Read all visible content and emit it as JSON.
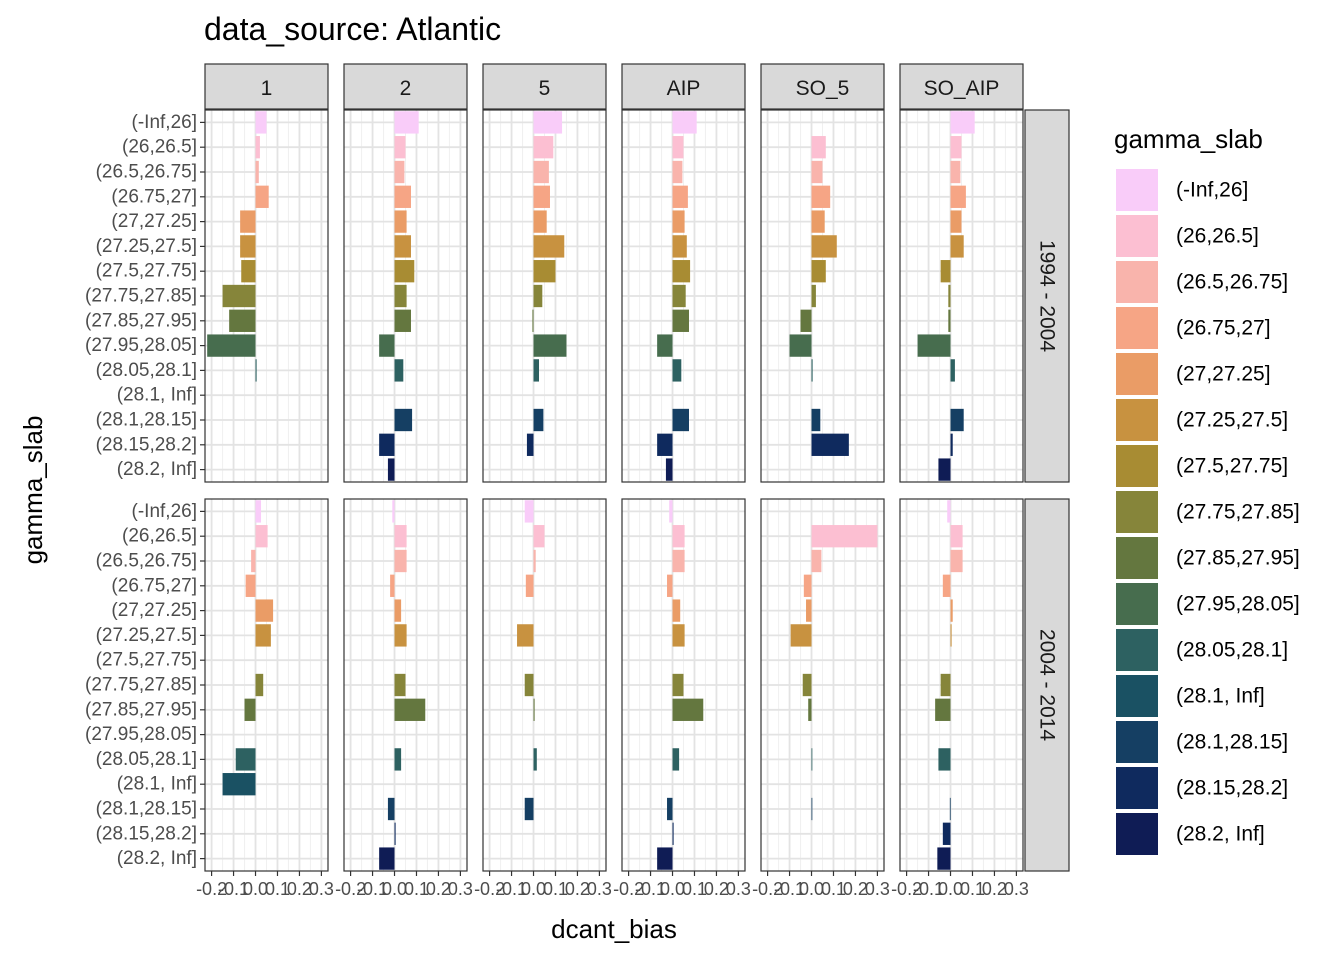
{
  "chart_data": {
    "type": "bar",
    "orientation": "horizontal",
    "title": "data_source: Atlantic",
    "xlabel": "dcant_bias",
    "ylabel": "gamma_slab",
    "xlim": [
      -0.23,
      0.33
    ],
    "xticks": [
      -0.2,
      -0.1,
      0.0,
      0.1,
      0.2,
      0.3
    ],
    "xtick_labels": [
      "-0.2",
      "-0.1",
      "0.0",
      "0.1",
      "0.2",
      "0.3"
    ],
    "grid": true,
    "legend": {
      "title": "gamma_slab",
      "placement": "right"
    },
    "categories": [
      "(-Inf,26]",
      "(26,26.5]",
      "(26.5,26.75]",
      "(26.75,27]",
      "(27,27.25]",
      "(27.25,27.5]",
      "(27.5,27.75]",
      "(27.75,27.85]",
      "(27.85,27.95]",
      "(27.95,28.05]",
      "(28.05,28.1]",
      "(28.1, Inf]",
      "(28.1,28.15]",
      "(28.15,28.2]",
      "(28.2, Inf]"
    ],
    "colors": [
      "#F9CCF9",
      "#FCBFD2",
      "#F9B4AC",
      "#F6A585",
      "#EA9C66",
      "#C89240",
      "#A88C33",
      "#86853A",
      "#64773F",
      "#476D4E",
      "#2D6161",
      "#1A5163",
      "#153F63",
      "#0F2A5E",
      "#0F1C55"
    ],
    "column_facets": [
      "1",
      "2",
      "5",
      "AIP",
      "SO_5",
      "SO_AIP"
    ],
    "row_facets": [
      "1994 - 2004",
      "2004 - 2014"
    ],
    "panels": [
      [
        [
          0.05,
          0.02,
          0.015,
          0.06,
          -0.07,
          -0.07,
          -0.065,
          -0.15,
          -0.12,
          -0.22,
          0.005,
          null,
          null,
          null,
          null
        ],
        [
          0.11,
          0.05,
          0.045,
          0.075,
          0.055,
          0.075,
          0.09,
          0.055,
          0.075,
          -0.07,
          0.04,
          null,
          0.08,
          -0.07,
          -0.03
        ],
        [
          0.13,
          0.09,
          0.07,
          0.075,
          0.06,
          0.14,
          0.1,
          0.04,
          -0.005,
          0.15,
          0.025,
          null,
          0.045,
          -0.03,
          null
        ],
        [
          0.11,
          0.05,
          0.045,
          0.07,
          0.055,
          0.065,
          0.08,
          0.06,
          0.075,
          -0.07,
          0.04,
          null,
          0.075,
          -0.07,
          -0.03
        ],
        [
          null,
          0.065,
          0.05,
          0.085,
          0.06,
          0.115,
          0.065,
          0.02,
          -0.05,
          -0.1,
          0.005,
          null,
          0.04,
          0.17,
          null
        ],
        [
          0.11,
          0.05,
          0.045,
          0.07,
          0.05,
          0.06,
          -0.045,
          -0.01,
          -0.01,
          -0.15,
          0.02,
          null,
          0.06,
          0.01,
          -0.055
        ]
      ],
      [
        [
          0.025,
          0.055,
          -0.02,
          -0.045,
          0.08,
          0.07,
          null,
          0.035,
          -0.05,
          null,
          -0.09,
          -0.15,
          null,
          null,
          null
        ],
        [
          -0.01,
          0.055,
          0.055,
          -0.02,
          0.03,
          0.055,
          null,
          0.05,
          0.14,
          null,
          0.03,
          null,
          -0.03,
          0.005,
          -0.07
        ],
        [
          -0.04,
          0.05,
          0.01,
          -0.035,
          null,
          -0.075,
          null,
          -0.04,
          0.005,
          null,
          0.015,
          null,
          -0.04,
          null,
          null
        ],
        [
          -0.015,
          0.055,
          0.055,
          -0.025,
          0.035,
          0.055,
          null,
          0.05,
          0.14,
          null,
          0.03,
          null,
          -0.025,
          0.005,
          -0.07
        ],
        [
          null,
          0.3,
          0.045,
          -0.035,
          -0.025,
          -0.095,
          null,
          -0.04,
          -0.015,
          null,
          0.003,
          null,
          0.003,
          null,
          null
        ],
        [
          -0.015,
          0.055,
          0.055,
          -0.035,
          0.01,
          0.005,
          null,
          -0.045,
          -0.07,
          null,
          -0.055,
          null,
          -0.003,
          -0.035,
          -0.06
        ]
      ]
    ]
  }
}
